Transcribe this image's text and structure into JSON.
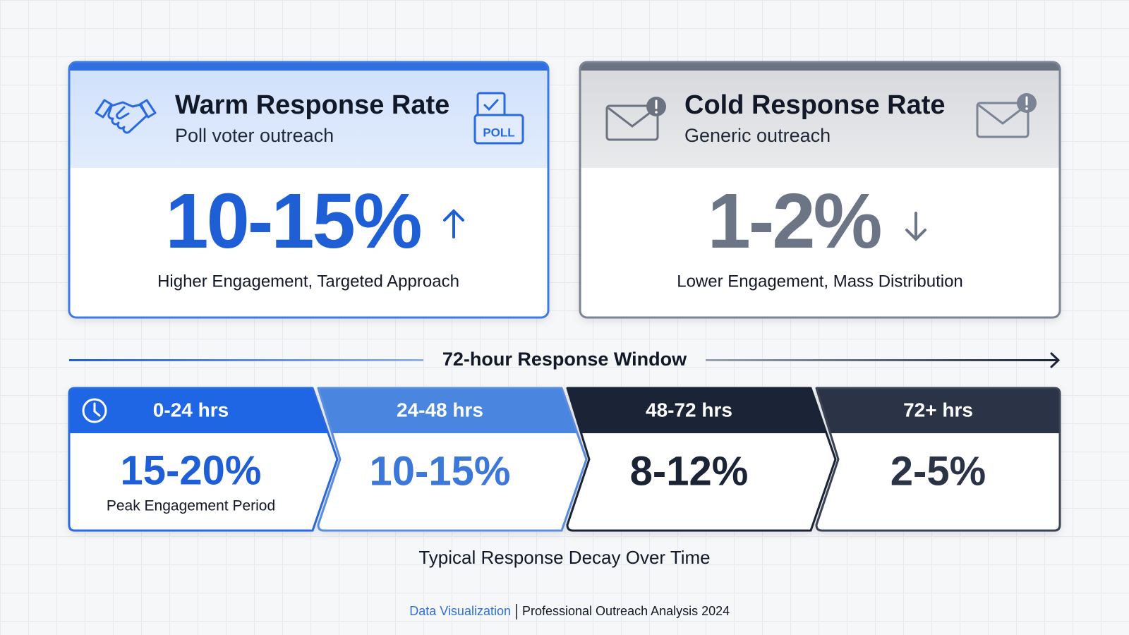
{
  "cards": [
    {
      "title": "Warm Response Rate",
      "subtitle": "Poll voter outreach",
      "icon_label": "POLL",
      "value": "10-15%",
      "description": "Higher Engagement, Targeted Approach"
    },
    {
      "title": "Cold Response Rate",
      "subtitle": "Generic outreach",
      "value": "1-2%",
      "description": "Lower Engagement, Mass Distribution"
    }
  ],
  "timeline": {
    "title": "72-hour Response Window",
    "stages": [
      {
        "label": "0-24 hrs",
        "value": "15-20%",
        "note": "Peak Engagement Period"
      },
      {
        "label": "24-48 hrs",
        "value": "10-15%"
      },
      {
        "label": "48-72 hrs",
        "value": "8-12%"
      },
      {
        "label": "72+ hrs",
        "value": "2-5%"
      }
    ],
    "caption": "Typical Response Decay Over Time"
  },
  "footer": {
    "source": "Data Visualization",
    "text": "Professional Outreach Analysis 2024"
  }
}
